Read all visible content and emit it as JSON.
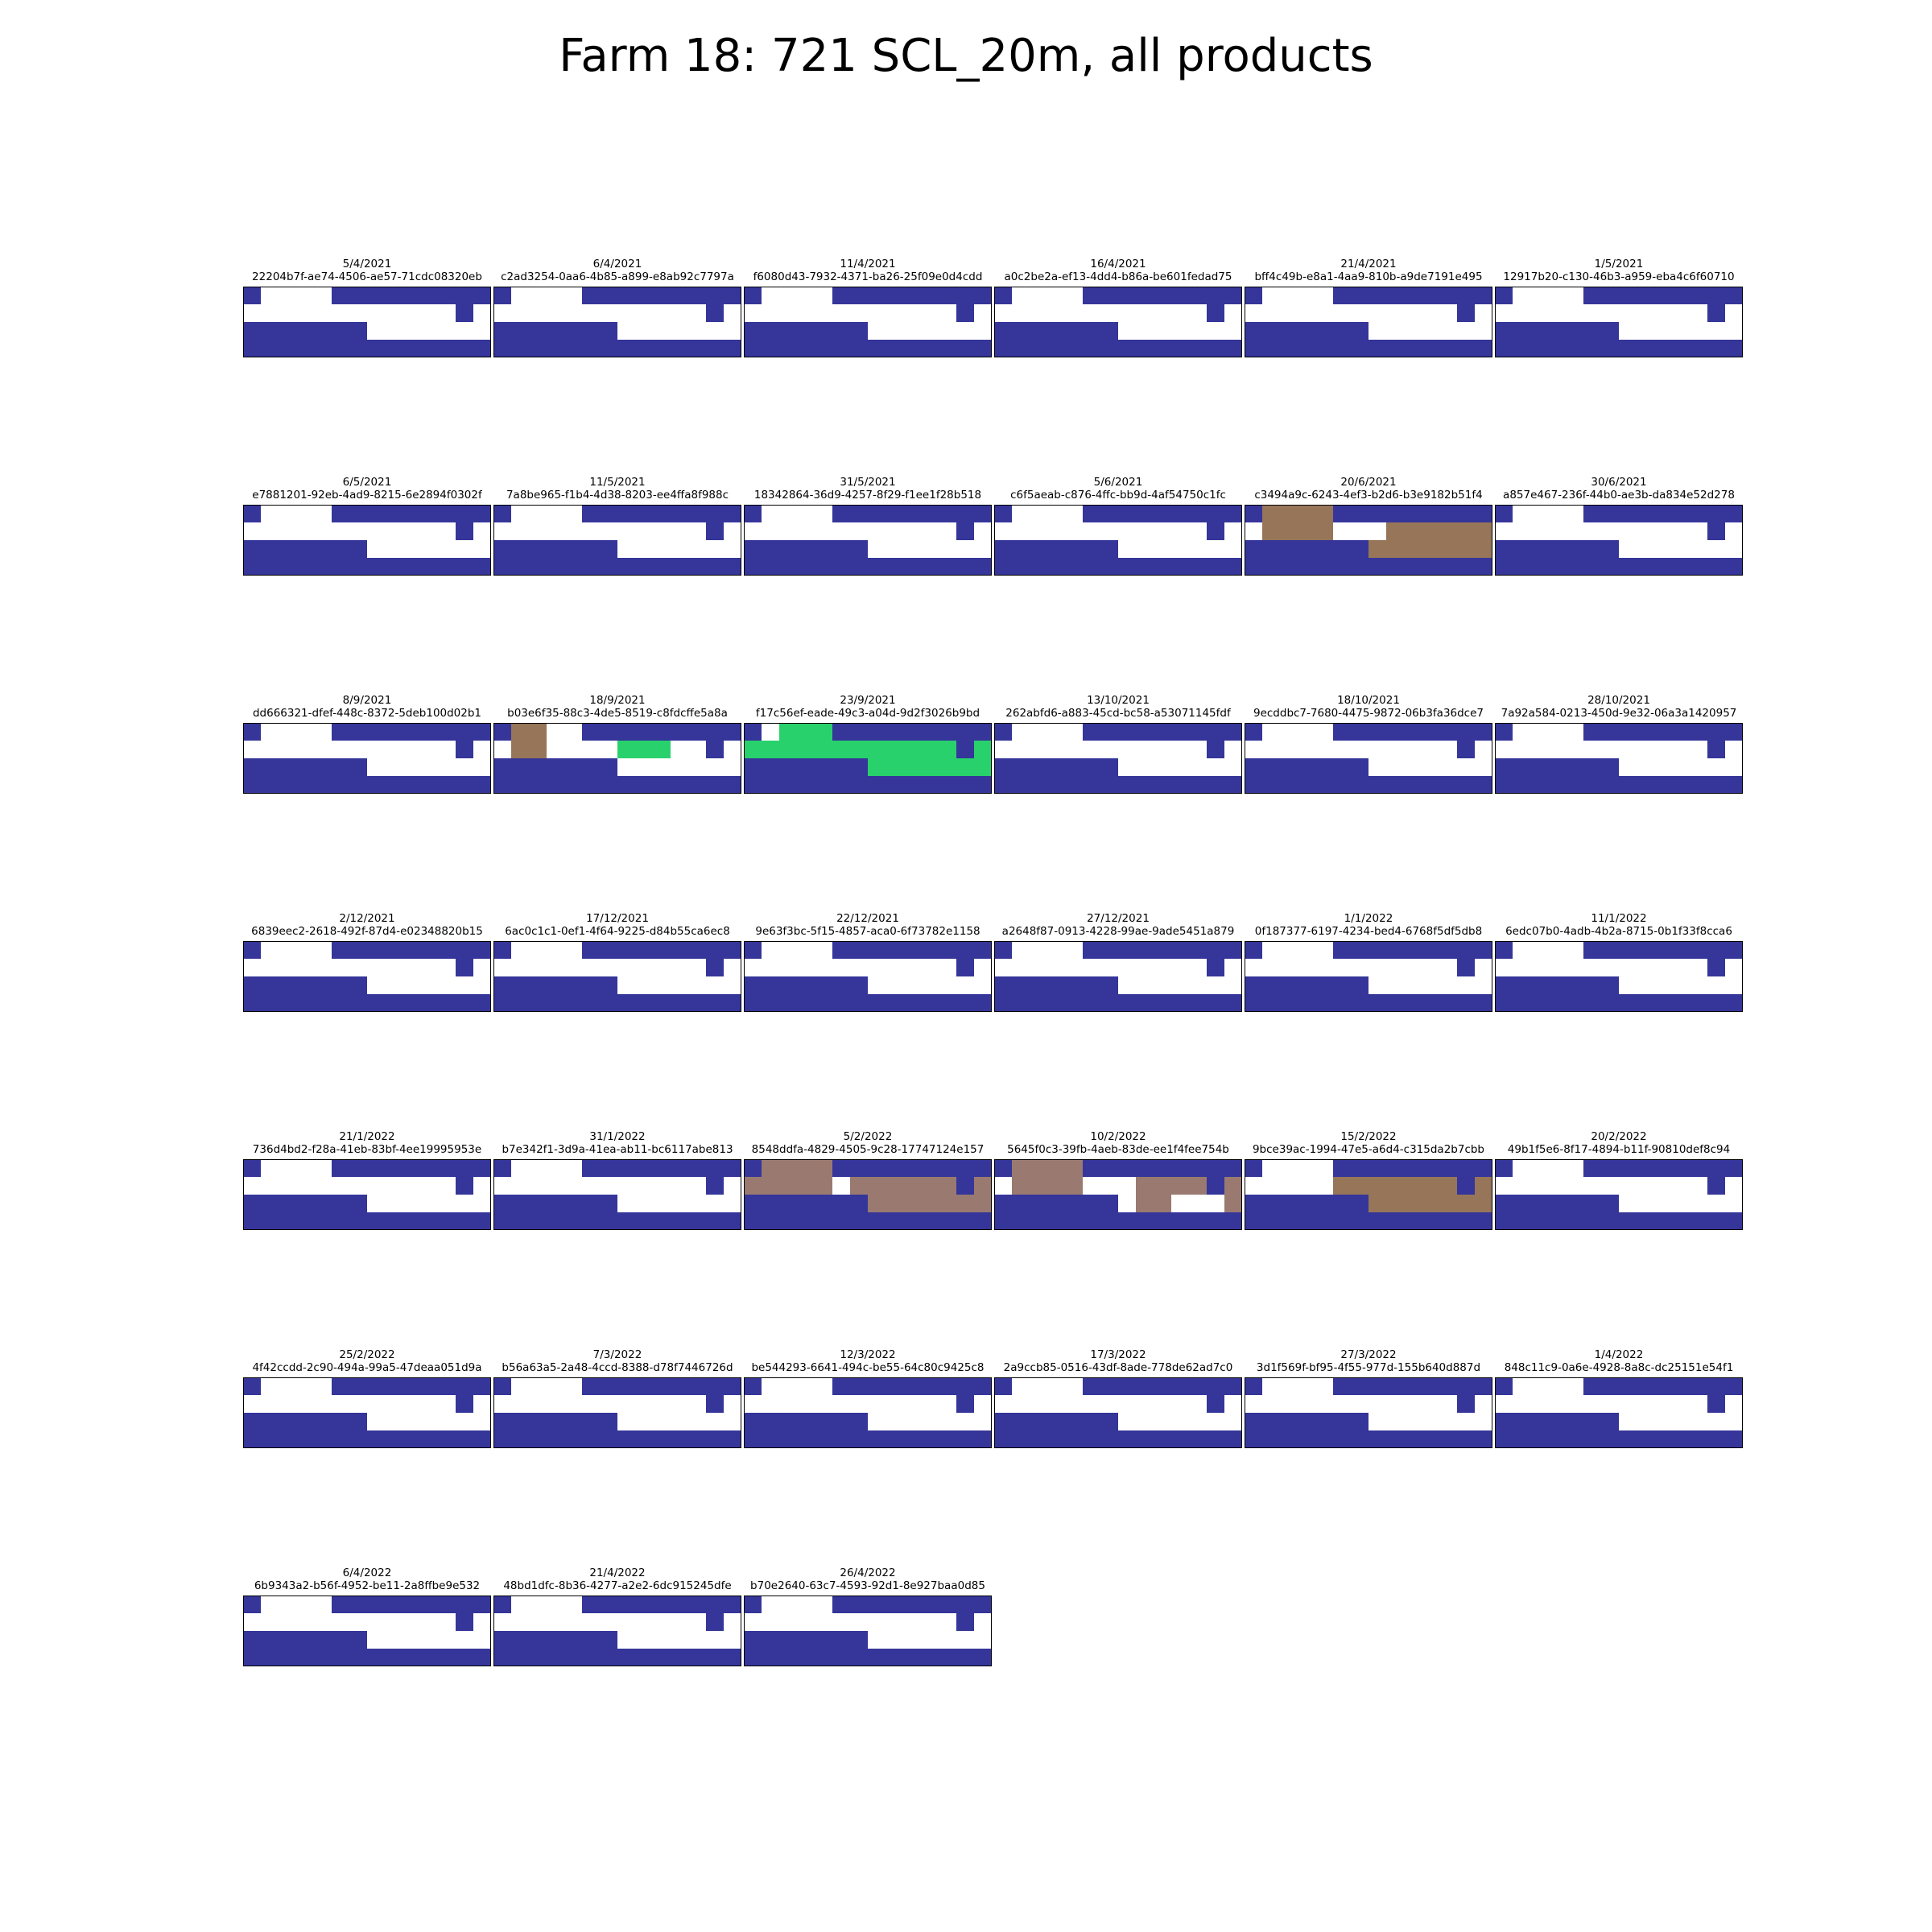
{
  "title": "Farm 18: 721 SCL_20m, all products",
  "colors": {
    "water": "#35359a",
    "background": "#ffffff",
    "bare_soil": "#977559",
    "vegetation": "#29d16c",
    "cloud_shadow": "#9a7a70",
    "frame": "#000000"
  },
  "chart_data": {
    "type": "heatmap",
    "grid_size": {
      "rows": 4,
      "cols": 14
    },
    "legend": "none",
    "value_codes": {
      "0": "water",
      "1": "background",
      "2": "bare_soil",
      "3": "vegetation",
      "4": "cloud_shadow"
    },
    "patterns": {
      "base": [
        "01111000000000",
        "11111111111101",
        "00000001111111",
        "00000000000000"
      ],
      "p_20_6_2021": [
        "02222000000000",
        "12222111222222",
        "00000002222222",
        "00000000000000"
      ],
      "p_18_9_2021": [
        "02211000000000",
        "12211113331101",
        "00000001111111",
        "00000000000000"
      ],
      "p_23_9_2021": [
        "01333000000000",
        "33333333333303",
        "00000003333333",
        "00000000000000"
      ],
      "p_5_2_2022": [
        "04444000000000",
        "44444144444404",
        "00000004444444",
        "00000000000000"
      ],
      "p_10_2_2022": [
        "04444000000000",
        "14444111444404",
        "00000001441114",
        "00000000000000"
      ],
      "p_15_2_2022": [
        "01111000000000",
        "11111222222202",
        "00000002222222",
        "00000000000000"
      ]
    },
    "panels": [
      {
        "date": "5/4/2021",
        "id": "22204b7f-ae74-4506-ae57-71cdc08320eb",
        "pattern": "base"
      },
      {
        "date": "6/4/2021",
        "id": "c2ad3254-0aa6-4b85-a899-e8ab92c7797a",
        "pattern": "base"
      },
      {
        "date": "11/4/2021",
        "id": "f6080d43-7932-4371-ba26-25f09e0d4cdd",
        "pattern": "base"
      },
      {
        "date": "16/4/2021",
        "id": "a0c2be2a-ef13-4dd4-b86a-be601fedad75",
        "pattern": "base"
      },
      {
        "date": "21/4/2021",
        "id": "bff4c49b-e8a1-4aa9-810b-a9de7191e495",
        "pattern": "base"
      },
      {
        "date": "1/5/2021",
        "id": "12917b20-c130-46b3-a959-eba4c6f60710",
        "pattern": "base"
      },
      {
        "date": "6/5/2021",
        "id": "e7881201-92eb-4ad9-8215-6e2894f0302f",
        "pattern": "base"
      },
      {
        "date": "11/5/2021",
        "id": "7a8be965-f1b4-4d38-8203-ee4ffa8f988c",
        "pattern": "base"
      },
      {
        "date": "31/5/2021",
        "id": "18342864-36d9-4257-8f29-f1ee1f28b518",
        "pattern": "base"
      },
      {
        "date": "5/6/2021",
        "id": "c6f5aeab-c876-4ffc-bb9d-4af54750c1fc",
        "pattern": "base"
      },
      {
        "date": "20/6/2021",
        "id": "c3494a9c-6243-4ef3-b2d6-b3e9182b51f4",
        "pattern": "p_20_6_2021"
      },
      {
        "date": "30/6/2021",
        "id": "a857e467-236f-44b0-ae3b-da834e52d278",
        "pattern": "base"
      },
      {
        "date": "8/9/2021",
        "id": "dd666321-dfef-448c-8372-5deb100d02b1",
        "pattern": "base"
      },
      {
        "date": "18/9/2021",
        "id": "b03e6f35-88c3-4de5-8519-c8fdcffe5a8a",
        "pattern": "p_18_9_2021"
      },
      {
        "date": "23/9/2021",
        "id": "f17c56ef-eade-49c3-a04d-9d2f3026b9bd",
        "pattern": "p_23_9_2021"
      },
      {
        "date": "13/10/2021",
        "id": "262abfd6-a883-45cd-bc58-a53071145fdf",
        "pattern": "base"
      },
      {
        "date": "18/10/2021",
        "id": "9ecddbc7-7680-4475-9872-06b3fa36dce7",
        "pattern": "base"
      },
      {
        "date": "28/10/2021",
        "id": "7a92a584-0213-450d-9e32-06a3a1420957",
        "pattern": "base"
      },
      {
        "date": "2/12/2021",
        "id": "6839eec2-2618-492f-87d4-e02348820b15",
        "pattern": "base"
      },
      {
        "date": "17/12/2021",
        "id": "6ac0c1c1-0ef1-4f64-9225-d84b55ca6ec8",
        "pattern": "base"
      },
      {
        "date": "22/12/2021",
        "id": "9e63f3bc-5f15-4857-aca0-6f73782e1158",
        "pattern": "base"
      },
      {
        "date": "27/12/2021",
        "id": "a2648f87-0913-4228-99ae-9ade5451a879",
        "pattern": "base"
      },
      {
        "date": "1/1/2022",
        "id": "0f187377-6197-4234-bed4-6768f5df5db8",
        "pattern": "base"
      },
      {
        "date": "11/1/2022",
        "id": "6edc07b0-4adb-4b2a-8715-0b1f33f8cca6",
        "pattern": "base"
      },
      {
        "date": "21/1/2022",
        "id": "736d4bd2-f28a-41eb-83bf-4ee19995953e",
        "pattern": "base"
      },
      {
        "date": "31/1/2022",
        "id": "b7e342f1-3d9a-41ea-ab11-bc6117abe813",
        "pattern": "base"
      },
      {
        "date": "5/2/2022",
        "id": "8548ddfa-4829-4505-9c28-17747124e157",
        "pattern": "p_5_2_2022"
      },
      {
        "date": "10/2/2022",
        "id": "5645f0c3-39fb-4aeb-83de-ee1f4fee754b",
        "pattern": "p_10_2_2022"
      },
      {
        "date": "15/2/2022",
        "id": "9bce39ac-1994-47e5-a6d4-c315da2b7cbb",
        "pattern": "p_15_2_2022"
      },
      {
        "date": "20/2/2022",
        "id": "49b1f5e6-8f17-4894-b11f-90810def8c94",
        "pattern": "base"
      },
      {
        "date": "25/2/2022",
        "id": "4f42ccdd-2c90-494a-99a5-47deaa051d9a",
        "pattern": "base"
      },
      {
        "date": "7/3/2022",
        "id": "b56a63a5-2a48-4ccd-8388-d78f7446726d",
        "pattern": "base"
      },
      {
        "date": "12/3/2022",
        "id": "be544293-6641-494c-be55-64c80c9425c8",
        "pattern": "base"
      },
      {
        "date": "17/3/2022",
        "id": "2a9ccb85-0516-43df-8ade-778de62ad7c0",
        "pattern": "base"
      },
      {
        "date": "27/3/2022",
        "id": "3d1f569f-bf95-4f55-977d-155b640d887d",
        "pattern": "base"
      },
      {
        "date": "1/4/2022",
        "id": "848c11c9-0a6e-4928-8a8c-dc25151e54f1",
        "pattern": "base"
      },
      {
        "date": "6/4/2022",
        "id": "6b9343a2-b56f-4952-be11-2a8ffbe9e532",
        "pattern": "base"
      },
      {
        "date": "21/4/2022",
        "id": "48bd1dfc-8b36-4277-a2e2-6dc915245dfe",
        "pattern": "base"
      },
      {
        "date": "26/4/2022",
        "id": "b70e2640-63c7-4593-92d1-8e927baa0d85",
        "pattern": "base"
      }
    ]
  }
}
